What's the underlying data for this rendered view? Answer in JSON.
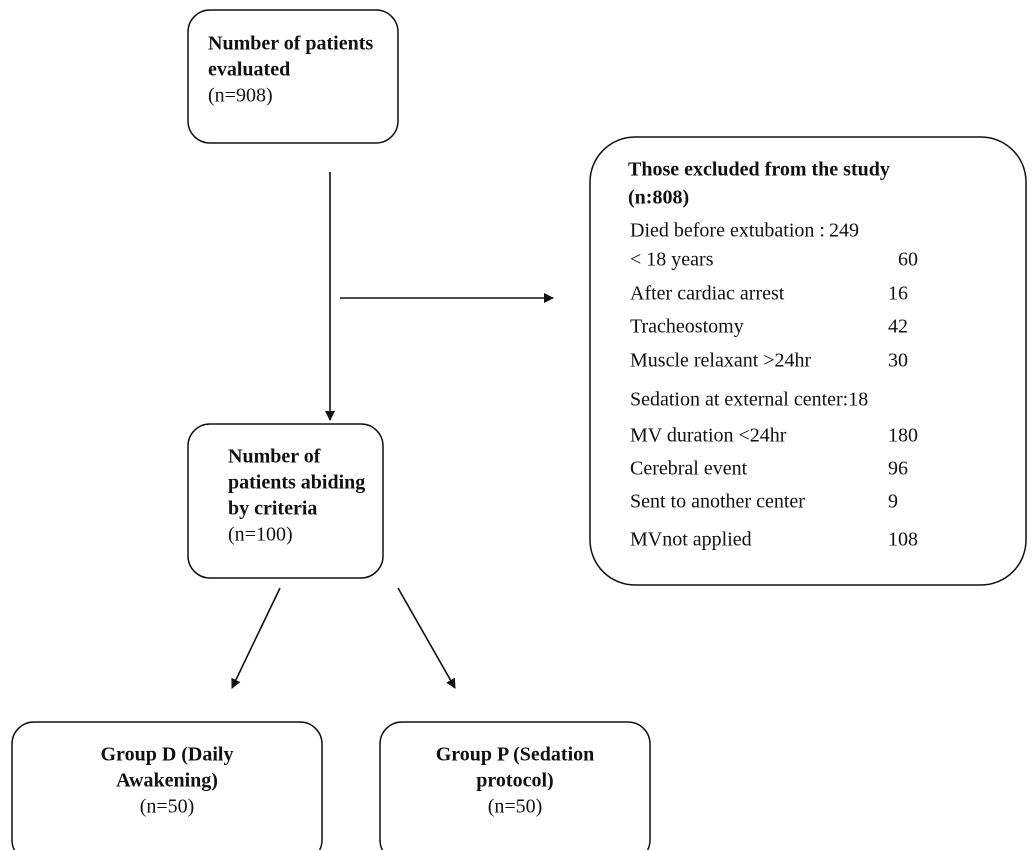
{
  "nodes": [
    {
      "title_lines": [
        "Number of patients",
        "evaluated"
      ],
      "count": "(n=908)"
    },
    {
      "title_lines": [
        "Number of",
        "patients abiding",
        "by criteria"
      ],
      "count": "(n=100)"
    },
    {
      "title_lines": [
        "Group D (Daily",
        "Awakening)"
      ],
      "count": "(n=50)"
    },
    {
      "title_lines": [
        "Group P (Sedation",
        "protocol)"
      ],
      "count": "(n=50)"
    }
  ],
  "excluded": {
    "title_lines": [
      "Those excluded from the study",
      "(n:808)"
    ],
    "items": [
      {
        "label": "Died before extubation :",
        "value": "249"
      },
      {
        "label": "< 18 years",
        "value": "60"
      },
      {
        "label": "After cardiac arrest",
        "value": "16"
      },
      {
        "label": "Tracheostomy",
        "value": "42"
      },
      {
        "label": "Muscle relaxant >24hr",
        "value": "30"
      },
      {
        "label": "Sedation at external center:",
        "value": "18"
      },
      {
        "label": "MV duration <24hr",
        "value": "180"
      },
      {
        "label": "Cerebral event",
        "value": "96"
      },
      {
        "label": "Sent to another center",
        "value": "9"
      },
      {
        "label": "MVnot applied",
        "value": "108"
      }
    ]
  }
}
